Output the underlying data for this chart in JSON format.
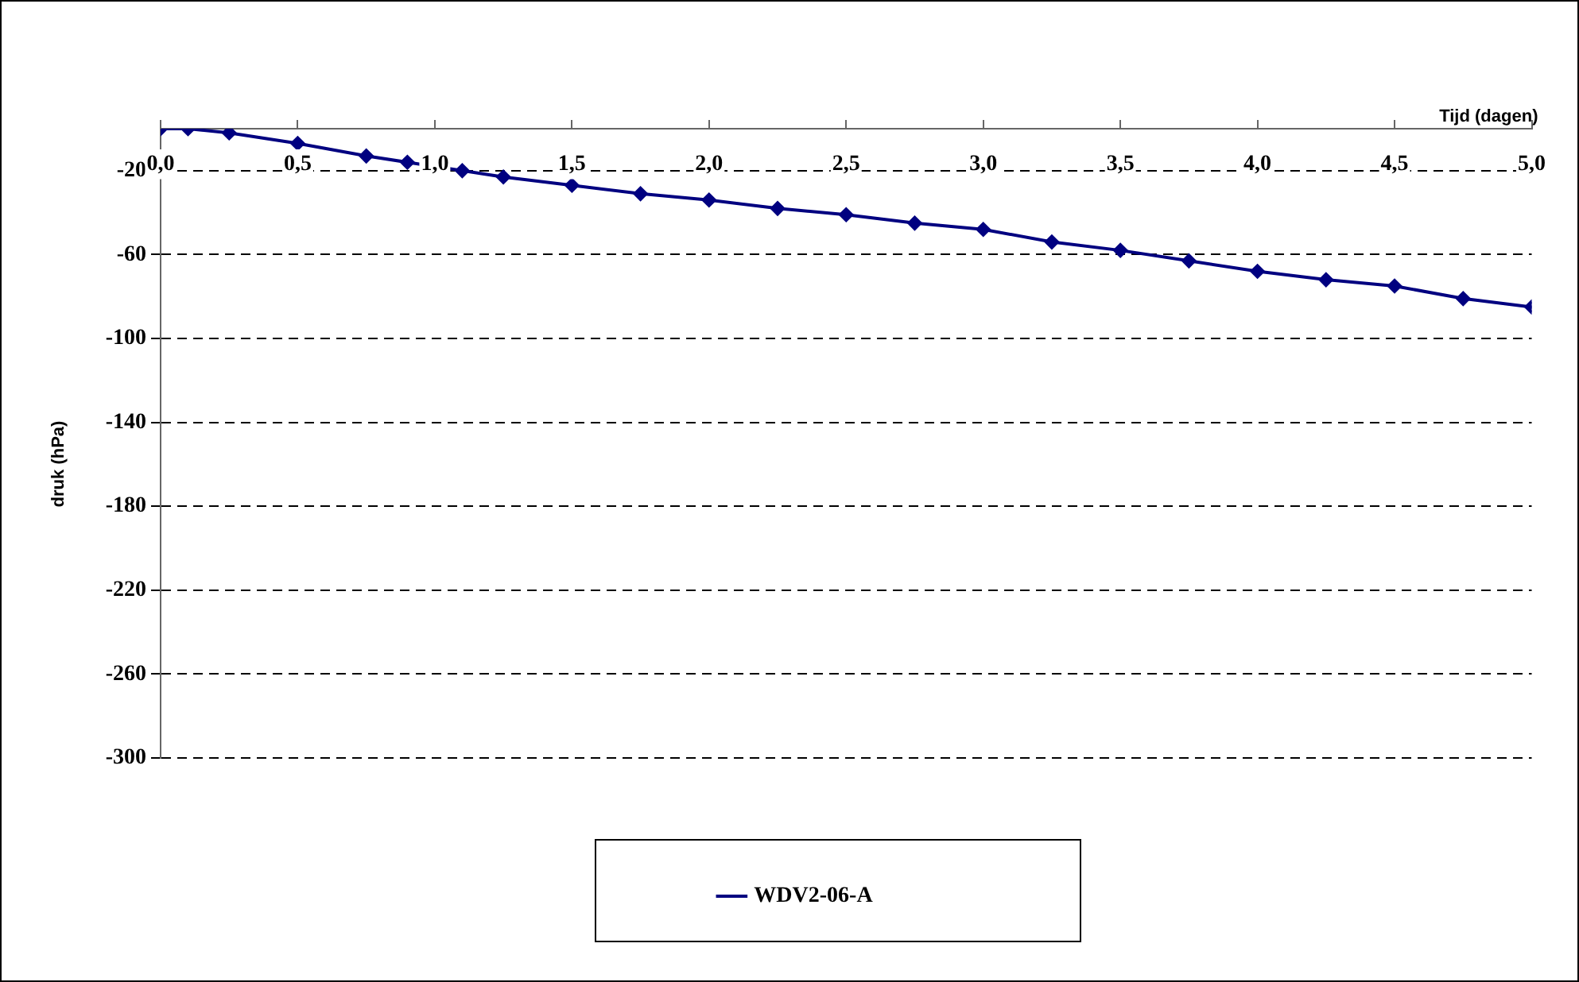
{
  "chart_data": {
    "type": "line",
    "xlabel": "Tijd (dagen)",
    "ylabel": "druk (hPa)",
    "x": [
      0,
      0.1,
      0.25,
      0.5,
      0.75,
      0.9,
      1.1,
      1.25,
      1.5,
      1.75,
      2.0,
      2.25,
      2.5,
      2.75,
      3.0,
      3.25,
      3.5,
      3.75,
      4.0,
      4.25,
      4.5,
      4.75,
      5.0
    ],
    "series": [
      {
        "name": "WDV2-06-A",
        "color": "#000080",
        "values": [
          0,
          0,
          -2,
          -7,
          -13,
          -16,
          -20,
          -23,
          -27,
          -31,
          -34,
          -38,
          -41,
          -45,
          -48,
          -54,
          -58,
          -63,
          -68,
          -72,
          -75,
          -81,
          -85
        ]
      }
    ],
    "xlim": [
      0,
      5
    ],
    "xticks": [
      {
        "value": 0,
        "label": "0,0"
      },
      {
        "value": 0.5,
        "label": "0,5"
      },
      {
        "value": 1,
        "label": "1,0"
      },
      {
        "value": 1.5,
        "label": "1,5"
      },
      {
        "value": 2,
        "label": "2,0"
      },
      {
        "value": 2.5,
        "label": "2,5"
      },
      {
        "value": 3,
        "label": "3,0"
      },
      {
        "value": 3.5,
        "label": "3,5"
      },
      {
        "value": 4,
        "label": "4,0"
      },
      {
        "value": 4.5,
        "label": "4,5"
      },
      {
        "value": 5,
        "label": "5,0"
      }
    ],
    "ylim": [
      -300,
      0
    ],
    "yticks": [
      -300,
      -260,
      -220,
      -180,
      -140,
      -100,
      -60,
      -20
    ],
    "grid": "y",
    "legend": "bottom",
    "marker": "diamond",
    "line_style": "solid"
  }
}
